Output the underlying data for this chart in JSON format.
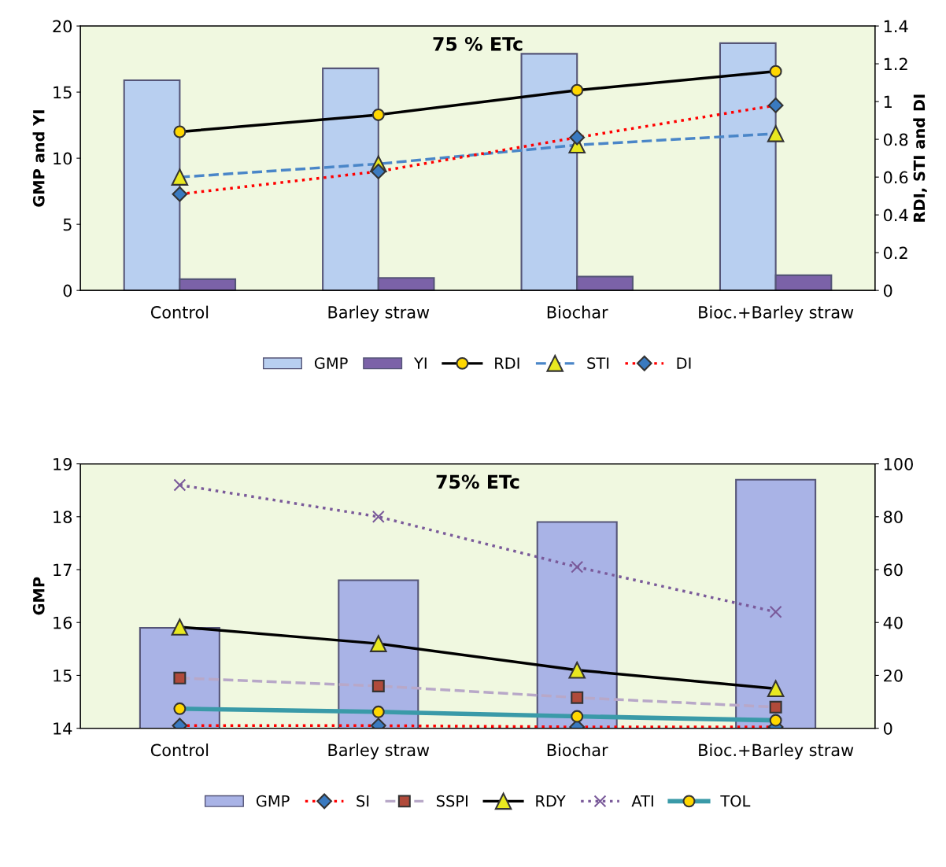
{
  "chart_data": [
    {
      "type": "bar",
      "title": "75 % ETc",
      "ylabel": "GMP and YI",
      "y2label": "RDI, STI and DI",
      "categories": [
        "Control",
        "Barley straw",
        "Biochar",
        "Bioc.+Barley straw"
      ],
      "ylim": [
        0,
        20
      ],
      "yticks": [
        0,
        5,
        10,
        15,
        20
      ],
      "y2lim": [
        0,
        1.4
      ],
      "y2ticks": [
        0,
        0.2,
        0.4,
        0.6,
        0.8,
        1,
        1.2,
        1.4
      ],
      "legend": "bottom",
      "grid": false,
      "series": [
        {
          "name": "GMP",
          "color": "#b8cff0",
          "values": [
            15.9,
            16.8,
            17.9,
            18.7
          ]
        },
        {
          "name": "YI",
          "color": "#7b62a8",
          "values": [
            0.85,
            0.95,
            1.05,
            1.15
          ]
        },
        {
          "name": "RDI",
          "type": "line",
          "axis": "y2",
          "color": "#000000",
          "marker": "circle",
          "line_style": "solid",
          "values": [
            0.84,
            0.93,
            1.06,
            1.16
          ]
        },
        {
          "name": "STI",
          "type": "line",
          "axis": "y2",
          "color": "#4a86c8",
          "marker": "triangle",
          "line_style": "dashed",
          "values": [
            0.6,
            0.67,
            0.77,
            0.83
          ]
        },
        {
          "name": "DI",
          "type": "line",
          "axis": "y2",
          "color": "#ff0000",
          "marker": "diamond",
          "line_style": "dotted",
          "values": [
            0.51,
            0.63,
            0.81,
            0.98
          ]
        }
      ]
    },
    {
      "type": "bar",
      "title": "75% ETc",
      "ylabel": "GMP",
      "categories": [
        "Control",
        "Barley straw",
        "Biochar",
        "Bioc.+Barley straw"
      ],
      "ylim": [
        14,
        19
      ],
      "yticks": [
        14,
        15,
        16,
        17,
        18,
        19
      ],
      "y2lim": [
        0,
        100
      ],
      "y2ticks": [
        0,
        20,
        40,
        60,
        80,
        100
      ],
      "legend": "bottom",
      "grid": false,
      "series": [
        {
          "name": "GMP",
          "color": "#a9b3e6",
          "values": [
            15.9,
            16.8,
            17.9,
            18.7
          ]
        },
        {
          "name": "SI",
          "type": "line",
          "axis": "y2",
          "color": "#ff0000",
          "marker": "diamond",
          "line_style": "dotted",
          "values": [
            1,
            1,
            0.5,
            0.5
          ]
        },
        {
          "name": "SSPI",
          "type": "line",
          "axis": "y2",
          "color": "#b8a8c8",
          "marker": "square",
          "line_style": "dashed",
          "values": [
            19,
            16,
            11.6,
            8
          ]
        },
        {
          "name": "RDY",
          "type": "line",
          "axis": "y2",
          "color": "#000000",
          "marker": "triangle",
          "line_style": "solid",
          "values": [
            38.3,
            32,
            22,
            15
          ]
        },
        {
          "name": "ATI",
          "type": "line",
          "axis": "y2",
          "color": "#7a5a9a",
          "marker": "cross",
          "line_style": "dotted",
          "values": [
            92,
            80,
            61,
            44
          ]
        },
        {
          "name": "TOL",
          "type": "line",
          "axis": "y2",
          "color": "#3a9aa8",
          "marker": "circle",
          "line_style": "solid",
          "values": [
            7.4,
            6.2,
            4.5,
            3
          ]
        }
      ]
    }
  ]
}
